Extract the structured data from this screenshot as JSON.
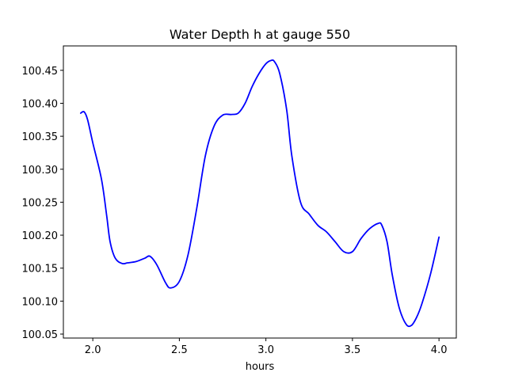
{
  "chart_data": {
    "type": "line",
    "title": "Water Depth h at gauge 550",
    "xlabel": "hours",
    "ylabel": "",
    "xlim": [
      1.83,
      4.1
    ],
    "ylim": [
      100.044,
      100.487
    ],
    "x_ticks": [
      2.0,
      2.5,
      3.0,
      3.5,
      4.0
    ],
    "x_tick_labels": [
      "2.0",
      "2.5",
      "3.0",
      "3.5",
      "4.0"
    ],
    "y_ticks": [
      100.05,
      100.1,
      100.15,
      100.2,
      100.25,
      100.3,
      100.35,
      100.4,
      100.45
    ],
    "y_tick_labels": [
      "100.05",
      "100.10",
      "100.15",
      "100.20",
      "100.25",
      "100.30",
      "100.35",
      "100.40",
      "100.45"
    ],
    "grid": false,
    "series": [
      {
        "color": "#0000ff",
        "x": [
          1.93,
          1.95,
          1.97,
          2.0,
          2.05,
          2.08,
          2.1,
          2.13,
          2.17,
          2.2,
          2.25,
          2.3,
          2.33,
          2.37,
          2.42,
          2.45,
          2.5,
          2.55,
          2.6,
          2.65,
          2.7,
          2.75,
          2.8,
          2.84,
          2.88,
          2.92,
          2.96,
          3.0,
          3.03,
          3.05,
          3.08,
          3.12,
          3.15,
          3.2,
          3.25,
          3.3,
          3.35,
          3.4,
          3.45,
          3.5,
          3.55,
          3.6,
          3.65,
          3.67,
          3.7,
          3.73,
          3.77,
          3.81,
          3.84,
          3.87,
          3.9,
          3.95,
          4.0
        ],
        "values": [
          100.385,
          100.387,
          100.375,
          100.34,
          100.285,
          100.23,
          100.19,
          100.165,
          100.157,
          100.158,
          100.16,
          100.165,
          100.168,
          100.155,
          100.128,
          100.12,
          100.13,
          100.17,
          100.24,
          100.32,
          100.365,
          100.382,
          100.383,
          100.385,
          100.4,
          100.425,
          100.445,
          100.46,
          100.465,
          100.463,
          100.445,
          100.39,
          100.32,
          100.25,
          100.232,
          100.215,
          100.205,
          100.19,
          100.175,
          100.175,
          100.195,
          100.21,
          100.218,
          100.215,
          100.19,
          100.14,
          100.09,
          100.065,
          100.063,
          100.075,
          100.095,
          100.14,
          100.197
        ]
      }
    ]
  }
}
